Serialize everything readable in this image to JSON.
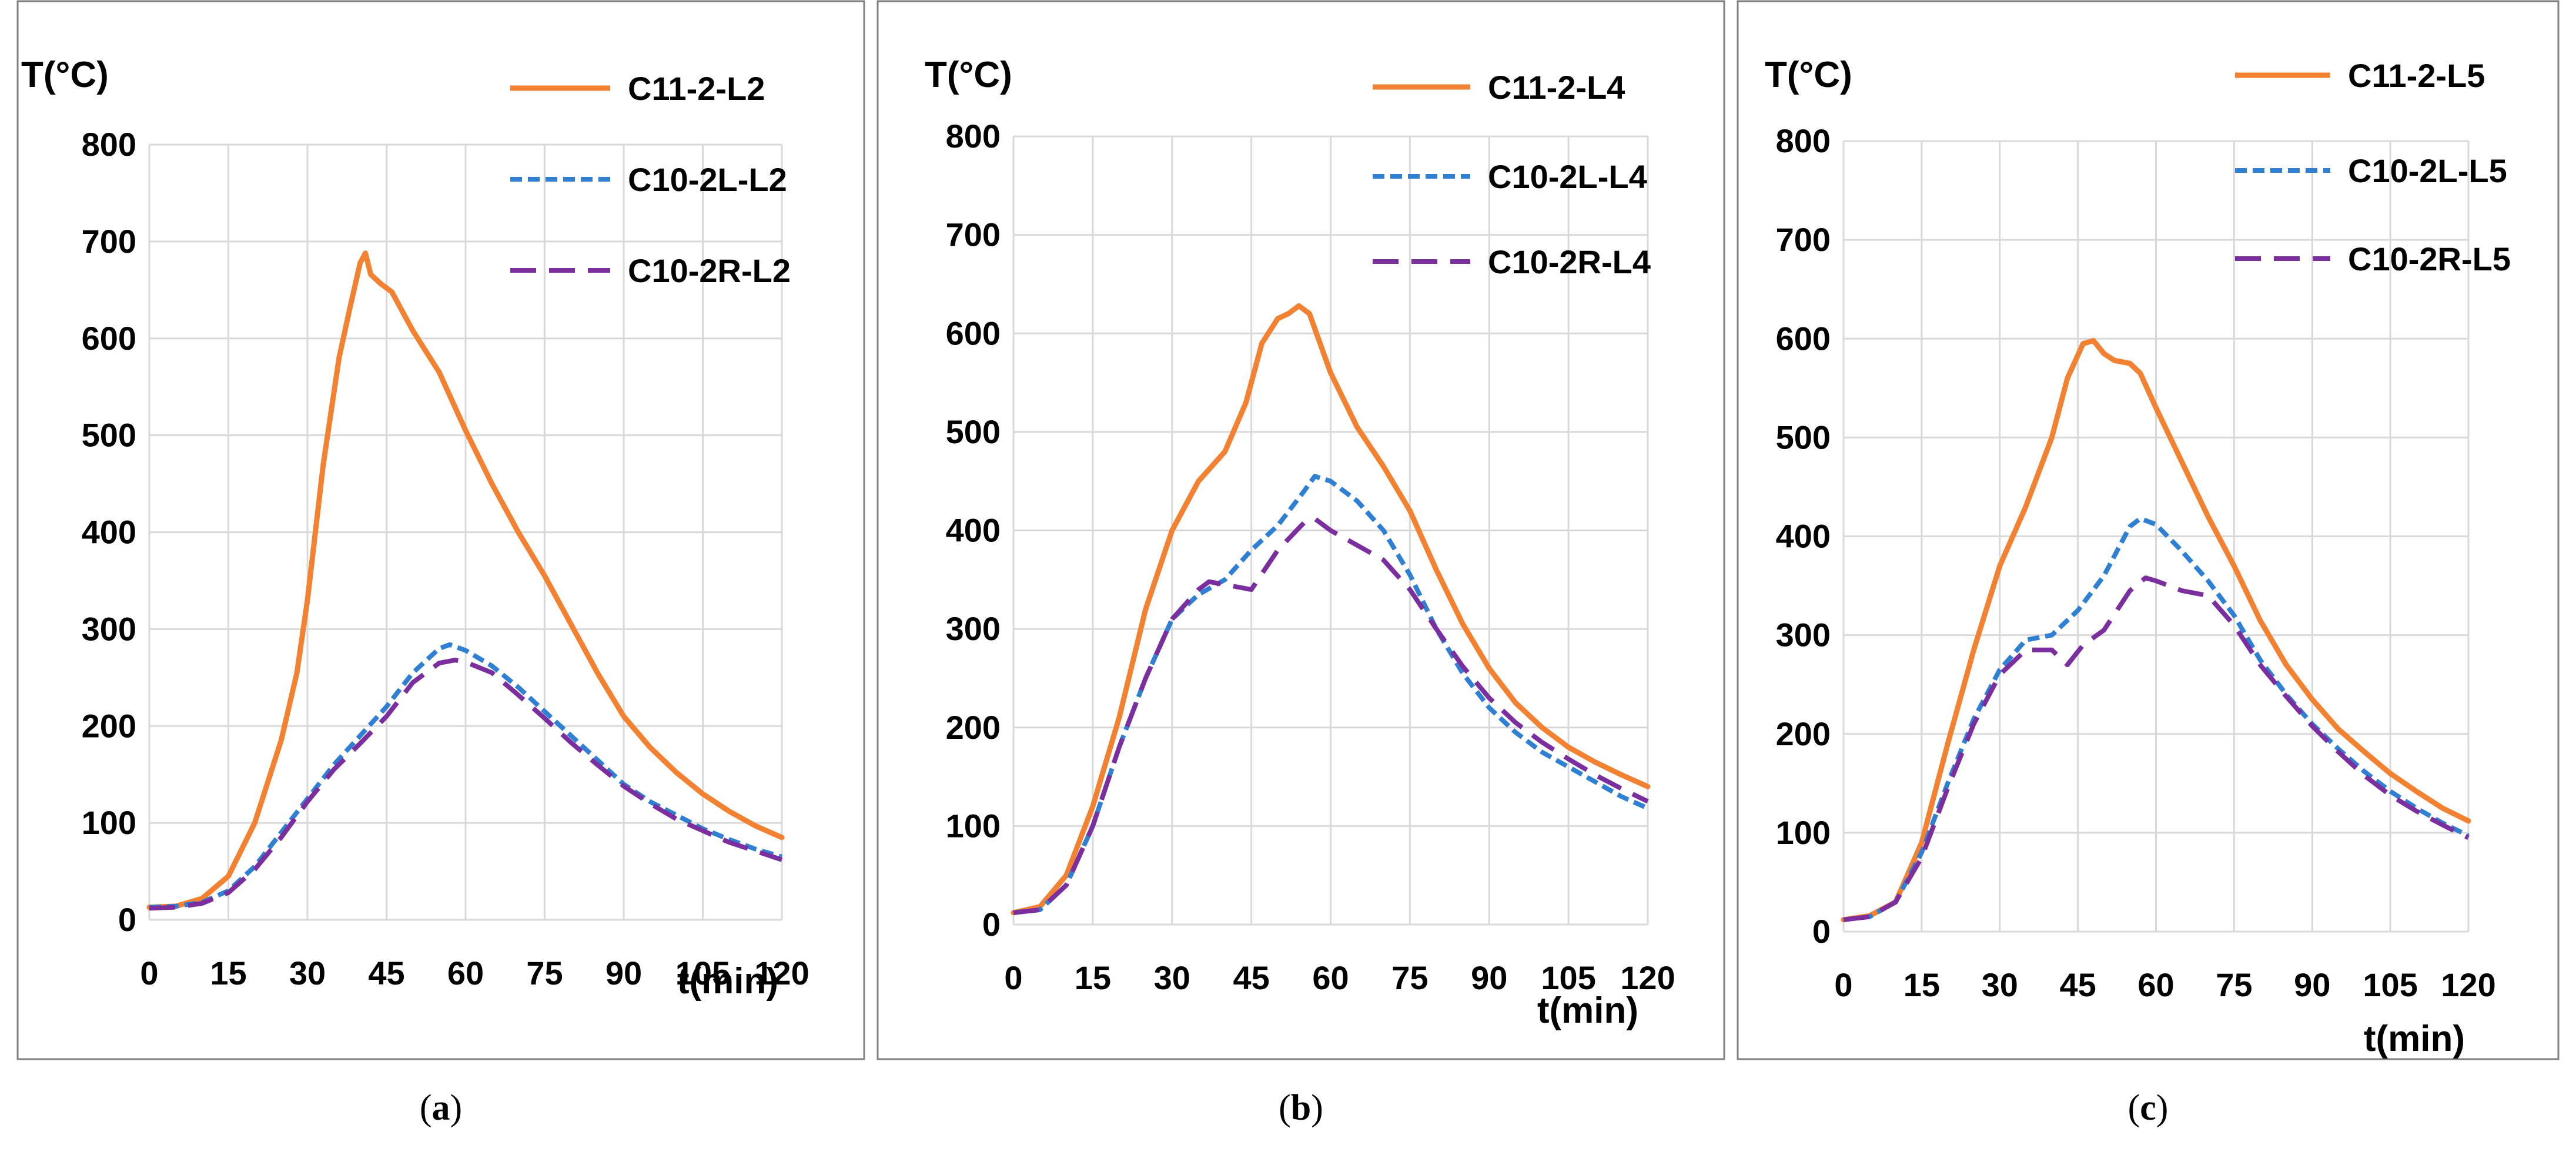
{
  "chart_data": [
    {
      "type": "line",
      "caption_letter": "a",
      "ylabel": "T(°C)",
      "xlabel": "t(min)",
      "xlim": [
        0,
        120
      ],
      "ylim": [
        0,
        800
      ],
      "xticks": [
        0,
        15,
        30,
        45,
        60,
        75,
        90,
        105,
        120
      ],
      "yticks": [
        0,
        100,
        200,
        300,
        400,
        500,
        600,
        700,
        800
      ],
      "series": [
        {
          "name": "C11-2-L2",
          "color": "#f28131",
          "style": "solid",
          "x": [
            0,
            5,
            10,
            15,
            20,
            25,
            28,
            30,
            33,
            36,
            38,
            40,
            41,
            42,
            44,
            46,
            48,
            50,
            55,
            60,
            65,
            70,
            75,
            80,
            85,
            90,
            95,
            100,
            105,
            110,
            115,
            120
          ],
          "y": [
            13,
            14,
            22,
            45,
            100,
            185,
            255,
            330,
            470,
            580,
            630,
            678,
            688,
            666,
            656,
            648,
            628,
            608,
            565,
            505,
            450,
            400,
            355,
            305,
            255,
            210,
            178,
            152,
            130,
            112,
            97,
            85
          ]
        },
        {
          "name": "C10-2L-L2",
          "color": "#2f7fd3",
          "style": "dash",
          "x": [
            0,
            5,
            10,
            15,
            20,
            25,
            30,
            35,
            40,
            45,
            50,
            55,
            57,
            60,
            65,
            70,
            75,
            80,
            85,
            90,
            95,
            100,
            105,
            110,
            115,
            120
          ],
          "y": [
            13,
            14,
            18,
            30,
            55,
            90,
            125,
            160,
            190,
            220,
            255,
            280,
            284,
            278,
            262,
            240,
            215,
            190,
            165,
            140,
            122,
            108,
            94,
            83,
            73,
            65
          ]
        },
        {
          "name": "C10-2R-L2",
          "color": "#7b2f9e",
          "style": "longdash",
          "x": [
            0,
            5,
            10,
            15,
            20,
            25,
            30,
            35,
            40,
            45,
            50,
            55,
            58,
            60,
            65,
            70,
            75,
            80,
            85,
            90,
            95,
            100,
            105,
            110,
            115,
            120
          ],
          "y": [
            12,
            13,
            17,
            28,
            52,
            85,
            122,
            155,
            182,
            210,
            245,
            265,
            268,
            266,
            255,
            232,
            208,
            183,
            160,
            138,
            120,
            104,
            92,
            80,
            71,
            62
          ]
        }
      ]
    },
    {
      "type": "line",
      "caption_letter": "b",
      "ylabel": "T(°C)",
      "xlabel": "t(min)",
      "xlim": [
        0,
        120
      ],
      "ylim": [
        0,
        800
      ],
      "xticks": [
        0,
        15,
        30,
        45,
        60,
        75,
        90,
        105,
        120
      ],
      "yticks": [
        0,
        100,
        200,
        300,
        400,
        500,
        600,
        700,
        800
      ],
      "series": [
        {
          "name": "C11-2-L4",
          "color": "#f28131",
          "style": "solid",
          "x": [
            0,
            5,
            10,
            15,
            20,
            25,
            30,
            35,
            40,
            44,
            47,
            50,
            52,
            54,
            56,
            60,
            65,
            70,
            75,
            80,
            85,
            90,
            95,
            100,
            105,
            110,
            115,
            120
          ],
          "y": [
            12,
            18,
            50,
            120,
            210,
            320,
            400,
            450,
            480,
            530,
            590,
            615,
            620,
            628,
            620,
            560,
            505,
            465,
            420,
            360,
            305,
            260,
            225,
            200,
            180,
            165,
            152,
            140
          ]
        },
        {
          "name": "C10-2L-L4",
          "color": "#2f7fd3",
          "style": "dash",
          "x": [
            0,
            5,
            10,
            15,
            20,
            25,
            30,
            35,
            40,
            45,
            50,
            55,
            57,
            60,
            65,
            70,
            75,
            80,
            85,
            90,
            95,
            100,
            105,
            110,
            115,
            120
          ],
          "y": [
            12,
            15,
            40,
            100,
            180,
            250,
            310,
            335,
            350,
            380,
            405,
            440,
            455,
            450,
            430,
            400,
            355,
            300,
            255,
            220,
            195,
            175,
            160,
            145,
            130,
            118
          ]
        },
        {
          "name": "C10-2R-L4",
          "color": "#7b2f9e",
          "style": "longdash",
          "x": [
            0,
            5,
            10,
            15,
            20,
            25,
            30,
            35,
            37,
            40,
            45,
            50,
            55,
            57,
            60,
            65,
            70,
            75,
            80,
            85,
            90,
            95,
            100,
            105,
            110,
            115,
            120
          ],
          "y": [
            12,
            15,
            40,
            100,
            180,
            250,
            310,
            340,
            348,
            345,
            340,
            380,
            408,
            412,
            400,
            385,
            370,
            340,
            300,
            262,
            230,
            205,
            185,
            168,
            152,
            138,
            125
          ]
        }
      ]
    },
    {
      "type": "line",
      "caption_letter": "c",
      "ylabel": "T(°C)",
      "xlabel": "t(min)",
      "xlim": [
        0,
        120
      ],
      "ylim": [
        0,
        800
      ],
      "xticks": [
        0,
        15,
        30,
        45,
        60,
        75,
        90,
        105,
        120
      ],
      "yticks": [
        0,
        100,
        200,
        300,
        400,
        500,
        600,
        700,
        800
      ],
      "series": [
        {
          "name": "C11-2-L5",
          "color": "#f28131",
          "style": "solid",
          "x": [
            0,
            5,
            10,
            15,
            20,
            25,
            30,
            35,
            40,
            43,
            46,
            48,
            50,
            52,
            55,
            57,
            60,
            65,
            70,
            75,
            80,
            85,
            90,
            95,
            100,
            105,
            110,
            115,
            120
          ],
          "y": [
            12,
            16,
            30,
            90,
            190,
            285,
            370,
            430,
            500,
            560,
            595,
            598,
            585,
            578,
            575,
            565,
            530,
            475,
            420,
            370,
            315,
            270,
            235,
            205,
            182,
            160,
            142,
            125,
            112
          ]
        },
        {
          "name": "C10-2L-L5",
          "color": "#2f7fd3",
          "style": "dash",
          "x": [
            0,
            5,
            10,
            15,
            20,
            25,
            30,
            35,
            40,
            45,
            50,
            55,
            57,
            60,
            65,
            70,
            75,
            80,
            85,
            90,
            95,
            100,
            105,
            110,
            115,
            120
          ],
          "y": [
            12,
            15,
            30,
            80,
            150,
            215,
            265,
            295,
            300,
            325,
            360,
            410,
            418,
            412,
            385,
            355,
            320,
            275,
            240,
            210,
            185,
            162,
            142,
            125,
            110,
            97
          ]
        },
        {
          "name": "C10-2R-L5",
          "color": "#7b2f9e",
          "style": "longdash",
          "x": [
            0,
            5,
            10,
            15,
            20,
            25,
            30,
            35,
            40,
            43,
            46,
            50,
            55,
            58,
            60,
            65,
            70,
            75,
            80,
            85,
            90,
            95,
            100,
            105,
            110,
            115,
            120
          ],
          "y": [
            12,
            15,
            30,
            75,
            145,
            210,
            260,
            285,
            285,
            270,
            290,
            305,
            345,
            358,
            355,
            345,
            340,
            310,
            270,
            238,
            208,
            182,
            158,
            138,
            122,
            108,
            95
          ]
        }
      ]
    }
  ]
}
